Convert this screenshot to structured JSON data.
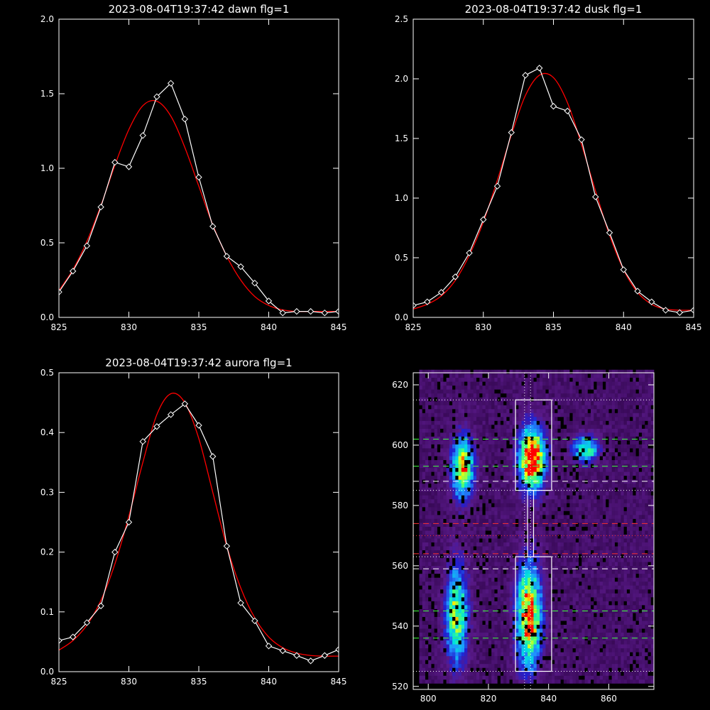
{
  "chart_data": [
    {
      "type": "line",
      "title": "2023-08-04T19:37:42 dawn flg=1",
      "xlim": [
        825,
        845
      ],
      "ylim": [
        0,
        2.0
      ],
      "xticks": [
        825,
        830,
        835,
        840,
        845
      ],
      "yticks": [
        0.0,
        0.5,
        1.0,
        1.5,
        2.0
      ],
      "ytick_labels": [
        "0.0",
        "0.5",
        "1.0",
        "1.5",
        "2.0"
      ],
      "series": [
        {
          "color": "#ffffff",
          "marker": "diamond",
          "x": [
            825,
            826,
            827,
            828,
            829,
            830,
            831,
            832,
            833,
            834,
            835,
            836,
            837,
            838,
            839,
            840,
            841,
            842,
            843,
            844,
            845
          ],
          "y": [
            0.17,
            0.31,
            0.48,
            0.74,
            1.04,
            1.01,
            1.22,
            1.48,
            1.57,
            1.33,
            0.94,
            0.61,
            0.41,
            0.34,
            0.23,
            0.11,
            0.03,
            0.04,
            0.04,
            0.03,
            0.04
          ]
        },
        {
          "color": "#ff0000",
          "marker": "none",
          "x": [
            825,
            826,
            827,
            828,
            829,
            830,
            831,
            832,
            833,
            834,
            835,
            836,
            837,
            838,
            839,
            840,
            841,
            842,
            843,
            844,
            845
          ],
          "y": [
            0.18,
            0.32,
            0.51,
            0.75,
            1.02,
            1.26,
            1.42,
            1.45,
            1.35,
            1.14,
            0.88,
            0.62,
            0.41,
            0.25,
            0.14,
            0.08,
            0.05,
            0.04,
            0.04,
            0.04,
            0.04
          ]
        }
      ]
    },
    {
      "type": "line",
      "title": "2023-08-04T19:37:42 dusk flg=1",
      "xlim": [
        825,
        845
      ],
      "ylim": [
        0,
        2.5
      ],
      "xticks": [
        825,
        830,
        835,
        840,
        845
      ],
      "yticks": [
        0.0,
        0.5,
        1.0,
        1.5,
        2.0,
        2.5
      ],
      "ytick_labels": [
        "0.0",
        "0.5",
        "1.0",
        "1.5",
        "2.0",
        "2.5"
      ],
      "series": [
        {
          "color": "#ffffff",
          "marker": "diamond",
          "x": [
            825,
            826,
            827,
            828,
            829,
            830,
            831,
            832,
            833,
            834,
            835,
            836,
            837,
            838,
            839,
            840,
            841,
            842,
            843,
            844,
            845
          ],
          "y": [
            0.1,
            0.13,
            0.21,
            0.34,
            0.54,
            0.82,
            1.1,
            1.55,
            2.03,
            2.09,
            1.77,
            1.73,
            1.49,
            1.01,
            0.71,
            0.4,
            0.22,
            0.13,
            0.06,
            0.04,
            0.06
          ]
        },
        {
          "color": "#ff0000",
          "marker": "none",
          "x": [
            825,
            826,
            827,
            828,
            829,
            830,
            831,
            832,
            833,
            834,
            835,
            836,
            837,
            838,
            839,
            840,
            841,
            842,
            843,
            844,
            845
          ],
          "y": [
            0.07,
            0.11,
            0.18,
            0.31,
            0.52,
            0.8,
            1.15,
            1.53,
            1.86,
            2.03,
            2.01,
            1.8,
            1.45,
            1.06,
            0.69,
            0.4,
            0.21,
            0.11,
            0.07,
            0.06,
            0.06
          ]
        }
      ]
    },
    {
      "type": "line",
      "title": "2023-08-04T19:37:42 aurora flg=1",
      "xlim": [
        825,
        845
      ],
      "ylim": [
        0,
        0.5
      ],
      "xticks": [
        825,
        830,
        835,
        840,
        845
      ],
      "yticks": [
        0.0,
        0.1,
        0.2,
        0.3,
        0.4,
        0.5
      ],
      "ytick_labels": [
        "0.0",
        "0.1",
        "0.2",
        "0.3",
        "0.4",
        "0.5"
      ],
      "series": [
        {
          "color": "#ffffff",
          "marker": "diamond",
          "x": [
            825,
            826,
            827,
            828,
            829,
            830,
            831,
            832,
            833,
            834,
            835,
            836,
            837,
            838,
            839,
            840,
            841,
            842,
            843,
            844,
            845
          ],
          "y": [
            0.052,
            0.058,
            0.082,
            0.11,
            0.2,
            0.25,
            0.385,
            0.41,
            0.43,
            0.448,
            0.412,
            0.36,
            0.21,
            0.115,
            0.085,
            0.043,
            0.035,
            0.027,
            0.018,
            0.027,
            0.037
          ]
        },
        {
          "color": "#ff0000",
          "marker": "none",
          "x": [
            825,
            826,
            827,
            828,
            829,
            830,
            831,
            832,
            833,
            834,
            835,
            836,
            837,
            838,
            839,
            840,
            841,
            842,
            843,
            844,
            845
          ],
          "y": [
            0.036,
            0.052,
            0.078,
            0.119,
            0.18,
            0.26,
            0.35,
            0.43,
            0.465,
            0.45,
            0.39,
            0.3,
            0.21,
            0.14,
            0.09,
            0.058,
            0.04,
            0.031,
            0.027,
            0.026,
            0.026
          ]
        }
      ]
    },
    {
      "type": "heatmap",
      "title": "",
      "xlim": [
        795,
        875
      ],
      "ylim": [
        519,
        624
      ],
      "xticks": [
        800,
        820,
        840,
        860
      ],
      "yticks": [
        520,
        540,
        560,
        580,
        600,
        620
      ],
      "ytick_labels": [
        "520",
        "540",
        "560",
        "580",
        "600",
        "620"
      ],
      "colormap": [
        "#000000",
        "#3a0a5a",
        "#5a1a8a",
        "#2020d0",
        "#2090ff",
        "#00e0e0",
        "#40ff80",
        "#ffff00",
        "#ff0000"
      ],
      "blobs": [
        {
          "x": 811,
          "y": 592,
          "sx": 2.5,
          "sy": 7,
          "amp": 0.75
        },
        {
          "x": 834,
          "y": 595,
          "sx": 3.0,
          "sy": 7,
          "amp": 1.0
        },
        {
          "x": 852,
          "y": 598,
          "sx": 3.0,
          "sy": 3,
          "amp": 0.55
        },
        {
          "x": 809,
          "y": 543,
          "sx": 2.5,
          "sy": 11,
          "amp": 0.65
        },
        {
          "x": 833,
          "y": 543,
          "sx": 2.8,
          "sy": 12,
          "amp": 0.85
        }
      ],
      "boxes": [
        {
          "x0": 829,
          "x1": 841,
          "y0": 585,
          "y1": 615,
          "color": "#ffffff"
        },
        {
          "x0": 829,
          "x1": 841,
          "y0": 525,
          "y1": 563,
          "color": "#ffffff"
        },
        {
          "x0": 833,
          "x1": 835,
          "y0": 563,
          "y1": 585,
          "color": "#ffffff"
        }
      ],
      "hlines": [
        {
          "y": 615,
          "color": "#ffffff",
          "style": "dotted"
        },
        {
          "y": 602,
          "color": "#40ff40",
          "style": "dashed"
        },
        {
          "y": 593,
          "color": "#40ff40",
          "style": "dashed"
        },
        {
          "y": 588,
          "color": "#ffffff",
          "style": "dashed"
        },
        {
          "y": 585,
          "color": "#ffffff",
          "style": "dotted"
        },
        {
          "y": 574,
          "color": "#ff3030",
          "style": "dashed"
        },
        {
          "y": 570,
          "color": "#ff3030",
          "style": "dotted"
        },
        {
          "y": 564,
          "color": "#ff3030",
          "style": "dashed"
        },
        {
          "y": 563,
          "color": "#ffffff",
          "style": "dotted"
        },
        {
          "y": 559,
          "color": "#ffffff",
          "style": "dashed"
        },
        {
          "y": 545,
          "color": "#40ff40",
          "style": "dashed"
        },
        {
          "y": 536,
          "color": "#40ff40",
          "style": "dashed"
        },
        {
          "y": 525,
          "color": "#ffffff",
          "style": "dotted"
        }
      ],
      "vlines": [
        {
          "x": 832,
          "color": "#ffffff",
          "style": "dotted"
        },
        {
          "x": 834,
          "color": "#ffffff",
          "style": "dotted"
        }
      ]
    }
  ]
}
